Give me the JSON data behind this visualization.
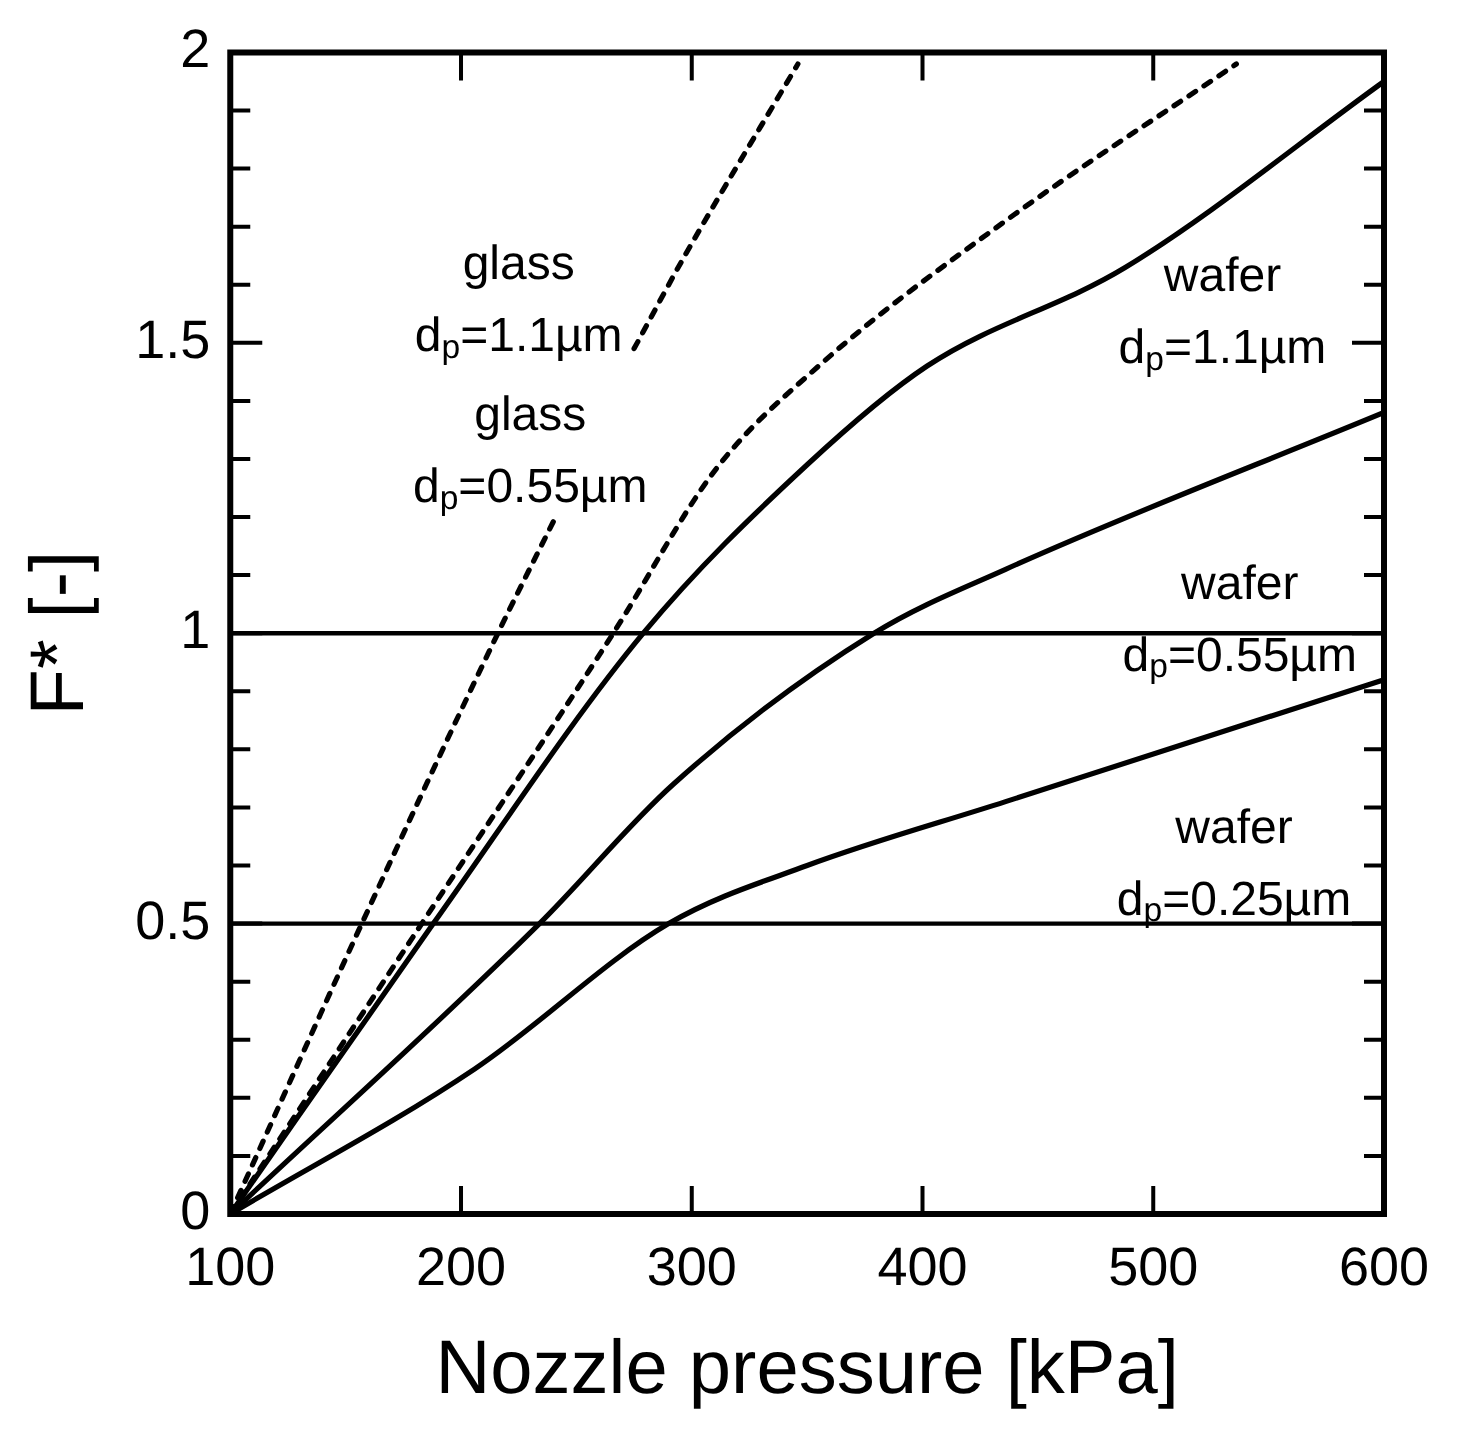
{
  "chart_data": {
    "type": "line",
    "xlabel": "Nozzle pressure [kPa]",
    "ylabel": "F* [-]",
    "xlim": [
      100,
      600
    ],
    "xticks": [
      100,
      200,
      300,
      400,
      500,
      600
    ],
    "ylim": [
      0,
      2
    ],
    "yticks": [
      0,
      {
        "value": 0.1,
        "label": null
      },
      {
        "value": 0.2,
        "label": null
      },
      {
        "value": 0.3,
        "label": null
      },
      {
        "value": 0.4,
        "label": null
      },
      0.5,
      {
        "value": 0.6,
        "label": null
      },
      {
        "value": 0.7,
        "label": null
      },
      {
        "value": 0.8,
        "label": null
      },
      {
        "value": 0.9,
        "label": null
      },
      1,
      {
        "value": 1.1,
        "label": null
      },
      {
        "value": 1.2,
        "label": null
      },
      {
        "value": 1.3,
        "label": null
      },
      {
        "value": 1.4,
        "label": null
      },
      1.5,
      {
        "value": 1.6,
        "label": null
      },
      {
        "value": 1.7,
        "label": null
      },
      {
        "value": 1.8,
        "label": null
      },
      {
        "value": 1.9,
        "label": null
      },
      2
    ],
    "grid": false,
    "legend": false,
    "marker": "none",
    "series": [
      {
        "color": "#000000",
        "line_style": "dotted",
        "x": [
          100,
          157,
          216,
          241,
          258,
          275,
          297,
          346
        ],
        "values": [
          0,
          0.5,
          1,
          1.2,
          null,
          1.49,
          1.65,
          1.98
        ]
      },
      {
        "color": "#000000",
        "line_style": "dotted",
        "x": [
          100,
          183,
          266,
          310,
          355,
          436,
          536
        ],
        "values": [
          0,
          0.5,
          1,
          1.28,
          1.46,
          1.71,
          1.98
        ]
      },
      {
        "color": "#000000",
        "line_style": "solid",
        "x": [
          100,
          188,
          279,
          350,
          402,
          488,
          600
        ],
        "values": [
          0,
          0.5,
          1,
          1.29,
          1.46,
          1.63,
          1.95
        ]
      },
      {
        "color": "#000000",
        "line_style": "solid",
        "x": [
          100,
          234,
          292,
          379,
          436,
          600
        ],
        "values": [
          0,
          0.5,
          0.74,
          1,
          1.11,
          1.38
        ]
      },
      {
        "color": "#000000",
        "line_style": "solid",
        "x": [
          100,
          206,
          290,
          350,
          436,
          600
        ],
        "values": [
          0,
          0.25,
          0.5,
          0.6,
          0.71,
          0.92
        ]
      }
    ],
    "ref_lines": [
      {
        "axis": "y",
        "value": 0.5,
        "color": "#000000"
      },
      {
        "axis": "y",
        "value": 1,
        "color": "#000000"
      }
    ],
    "annotations": [
      "glass d$_{p}$=1.1µm",
      "glass d$_{p}$=0.55µm",
      "wafer d$_{p}$=1.1µm",
      "wafer d$_{p}$=0.55µm",
      "wafer d$_{p}$=0.25µm"
    ]
  }
}
